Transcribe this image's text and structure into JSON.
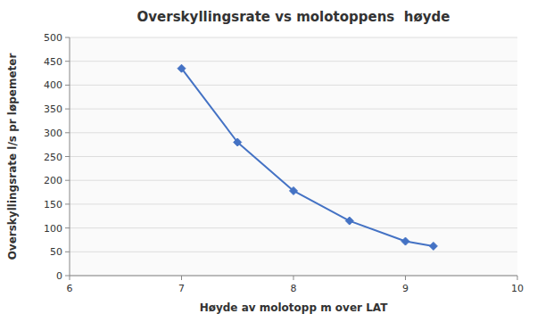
{
  "chart_data": {
    "type": "line",
    "title": "Overskyllingsrate vs molotoppens  høyde",
    "xlabel": "Høyde av molotopp m over LAT",
    "ylabel": "Overskyllingsrate l/s pr løpemeter",
    "x": [
      7.0,
      7.5,
      8.0,
      8.5,
      9.0,
      9.25
    ],
    "values": [
      435,
      280,
      178,
      115,
      72,
      62
    ],
    "xlim": [
      6,
      10
    ],
    "ylim": [
      0,
      500
    ],
    "xticks": [
      6,
      7,
      8,
      9,
      10
    ],
    "yticks": [
      0,
      50,
      100,
      150,
      200,
      250,
      300,
      350,
      400,
      450,
      500
    ],
    "color": "#4472C4",
    "marker": "diamond",
    "grid": "y"
  }
}
